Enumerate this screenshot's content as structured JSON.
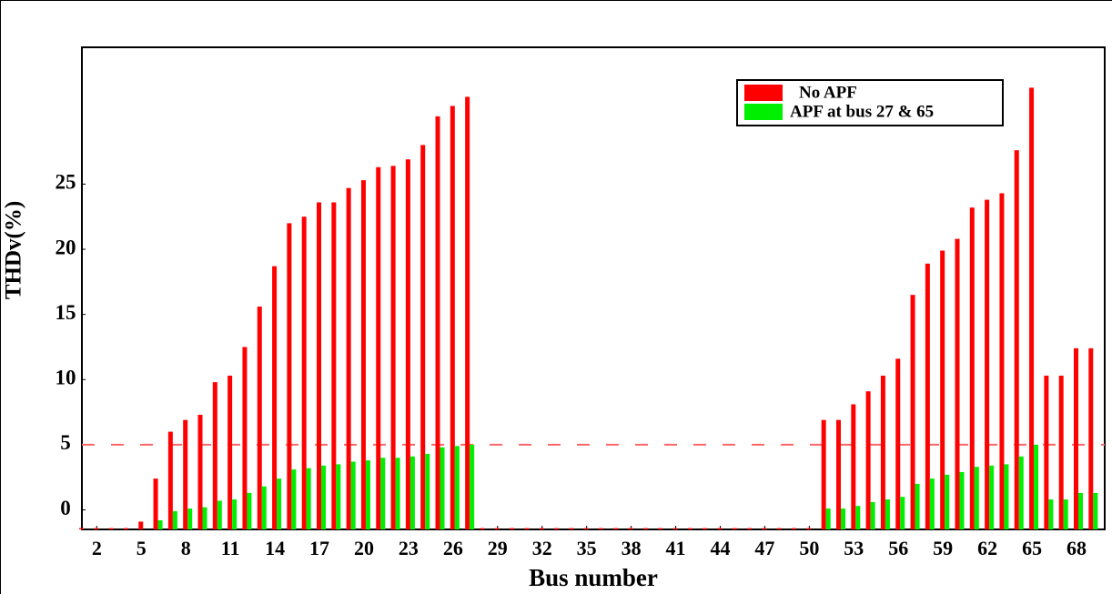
{
  "chart_data": {
    "type": "bar",
    "ylabel": "THDv(%)",
    "xlabel": "Bus number",
    "x": [
      1,
      2,
      3,
      4,
      5,
      6,
      7,
      8,
      9,
      10,
      11,
      12,
      13,
      14,
      15,
      16,
      17,
      18,
      19,
      20,
      21,
      22,
      23,
      24,
      25,
      26,
      27,
      28,
      29,
      30,
      31,
      32,
      33,
      34,
      35,
      36,
      37,
      38,
      39,
      40,
      41,
      42,
      43,
      44,
      45,
      46,
      47,
      48,
      49,
      50,
      51,
      52,
      53,
      54,
      55,
      56,
      57,
      58,
      59,
      60,
      61,
      62,
      63,
      64,
      65,
      66,
      67,
      68,
      69
    ],
    "series": [
      {
        "name": "No APF",
        "color": "#ff0000",
        "values": [
          -1.4,
          -1.4,
          -1.4,
          -1.4,
          -0.9,
          2.4,
          6.0,
          6.9,
          7.3,
          9.8,
          10.3,
          12.5,
          15.6,
          18.7,
          22.0,
          22.5,
          23.6,
          23.6,
          24.7,
          25.3,
          26.3,
          26.4,
          26.9,
          28.0,
          30.2,
          31.0,
          31.7,
          -1.4,
          -1.4,
          -1.4,
          -1.4,
          -1.4,
          -1.4,
          -1.4,
          -1.4,
          -1.4,
          -1.4,
          -1.4,
          -1.4,
          -1.4,
          -1.4,
          -1.4,
          -1.4,
          -1.4,
          -1.4,
          -1.4,
          -1.4,
          -1.4,
          -1.4,
          -1.4,
          6.9,
          6.9,
          8.1,
          9.1,
          10.3,
          11.6,
          16.5,
          18.9,
          19.9,
          20.8,
          23.2,
          23.8,
          24.3,
          27.6,
          32.4,
          10.3,
          10.3,
          12.4,
          12.4
        ]
      },
      {
        "name": "APF at bus 27 & 65",
        "color": "#00ee00",
        "values": [
          -1.5,
          -1.5,
          -1.5,
          -1.5,
          -1.5,
          -0.8,
          -0.1,
          0.1,
          0.2,
          0.7,
          0.8,
          1.3,
          1.8,
          2.4,
          3.1,
          3.2,
          3.4,
          3.5,
          3.7,
          3.8,
          4.0,
          4.0,
          4.1,
          4.3,
          4.8,
          4.9,
          5.0,
          -1.5,
          -1.5,
          -1.5,
          -1.5,
          -1.5,
          -1.5,
          -1.5,
          -1.5,
          -1.5,
          -1.5,
          -1.5,
          -1.5,
          -1.5,
          -1.5,
          -1.5,
          -1.5,
          -1.5,
          -1.5,
          -1.5,
          -1.5,
          -1.5,
          -1.5,
          -1.5,
          0.1,
          0.1,
          0.3,
          0.6,
          0.8,
          1.0,
          2.0,
          2.4,
          2.7,
          2.9,
          3.3,
          3.4,
          3.5,
          4.1,
          5.0,
          0.8,
          0.8,
          1.3,
          1.3
        ]
      }
    ],
    "xlim": [
      1,
      69.9
    ],
    "xticks": [
      2,
      5,
      8,
      11,
      14,
      17,
      20,
      23,
      26,
      29,
      32,
      35,
      38,
      41,
      44,
      47,
      50,
      53,
      56,
      59,
      62,
      65,
      68
    ],
    "ylim": [
      -1.5,
      35.5
    ],
    "yticks": [
      0,
      5,
      10,
      15,
      20,
      25
    ],
    "reference_line": {
      "value": 5,
      "color": "#ff6666"
    },
    "legend": "upper right"
  }
}
